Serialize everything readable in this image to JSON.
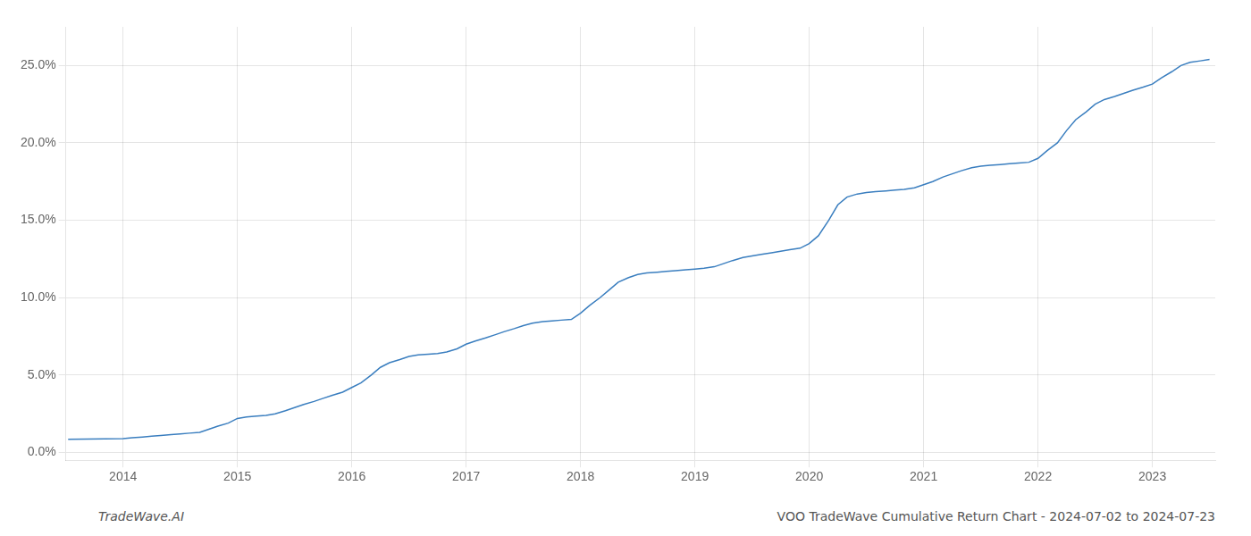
{
  "chart_data": {
    "type": "line",
    "annotations": [
      "TradeWave.AI",
      "VOO TradeWave Cumulative Return Chart - 2024-07-02 to 2024-07-23"
    ],
    "x": [
      2013.52,
      2014.0,
      2014.08,
      2014.17,
      2014.25,
      2014.33,
      2014.42,
      2014.5,
      2014.58,
      2014.67,
      2014.75,
      2014.83,
      2014.92,
      2015.0,
      2015.08,
      2015.17,
      2015.25,
      2015.33,
      2015.42,
      2015.5,
      2015.58,
      2015.67,
      2015.75,
      2015.83,
      2015.92,
      2016.0,
      2016.08,
      2016.17,
      2016.25,
      2016.33,
      2016.42,
      2016.5,
      2016.58,
      2016.67,
      2016.75,
      2016.83,
      2016.92,
      2017.0,
      2017.08,
      2017.17,
      2017.25,
      2017.33,
      2017.42,
      2017.5,
      2017.58,
      2017.67,
      2017.75,
      2017.83,
      2017.92,
      2018.0,
      2018.08,
      2018.17,
      2018.25,
      2018.33,
      2018.42,
      2018.5,
      2018.58,
      2018.67,
      2018.75,
      2018.83,
      2018.92,
      2019.0,
      2019.08,
      2019.17,
      2019.25,
      2019.33,
      2019.42,
      2019.5,
      2019.58,
      2019.67,
      2019.75,
      2019.83,
      2019.92,
      2020.0,
      2020.08,
      2020.17,
      2020.25,
      2020.33,
      2020.42,
      2020.5,
      2020.58,
      2020.67,
      2020.75,
      2020.83,
      2020.92,
      2021.0,
      2021.08,
      2021.17,
      2021.25,
      2021.33,
      2021.42,
      2021.5,
      2021.58,
      2021.67,
      2021.75,
      2021.83,
      2021.92,
      2022.0,
      2022.08,
      2022.17,
      2022.25,
      2022.33,
      2022.42,
      2022.5,
      2022.58,
      2022.67,
      2022.75,
      2022.83,
      2022.92,
      2023.0,
      2023.08,
      2023.17,
      2023.25,
      2023.33,
      2023.42,
      2023.5
    ],
    "values": [
      0.85,
      0.9,
      0.95,
      1.0,
      1.05,
      1.1,
      1.15,
      1.2,
      1.25,
      1.3,
      1.5,
      1.7,
      1.9,
      2.2,
      2.3,
      2.35,
      2.4,
      2.5,
      2.7,
      2.9,
      3.1,
      3.3,
      3.5,
      3.7,
      3.9,
      4.2,
      4.5,
      5.0,
      5.5,
      5.8,
      6.0,
      6.2,
      6.3,
      6.35,
      6.4,
      6.5,
      6.7,
      7.0,
      7.2,
      7.4,
      7.6,
      7.8,
      8.0,
      8.2,
      8.35,
      8.45,
      8.5,
      8.55,
      8.6,
      9.0,
      9.5,
      10.0,
      10.5,
      11.0,
      11.3,
      11.5,
      11.6,
      11.65,
      11.7,
      11.75,
      11.8,
      11.85,
      11.9,
      12.0,
      12.2,
      12.4,
      12.6,
      12.7,
      12.8,
      12.9,
      13.0,
      13.1,
      13.2,
      13.5,
      14.0,
      15.0,
      16.0,
      16.5,
      16.7,
      16.8,
      16.85,
      16.9,
      16.95,
      17.0,
      17.1,
      17.3,
      17.5,
      17.8,
      18.0,
      18.2,
      18.4,
      18.5,
      18.55,
      18.6,
      18.65,
      18.7,
      18.75,
      19.0,
      19.5,
      20.0,
      20.8,
      21.5,
      22.0,
      22.5,
      22.8,
      23.0,
      23.2,
      23.4,
      23.6,
      23.8,
      24.2,
      24.6,
      25.0,
      25.2,
      25.3,
      25.4
    ],
    "color": "#3a7ebf",
    "xlim": [
      2013.5,
      2023.55
    ],
    "ylim": [
      -0.5,
      27.5
    ],
    "xticks": [
      2014,
      2015,
      2016,
      2017,
      2018,
      2019,
      2020,
      2021,
      2022,
      2023
    ],
    "yticks": [
      {
        "value": 0.0,
        "label": "0.0%"
      },
      {
        "value": 5.0,
        "label": "5.0%"
      },
      {
        "value": 10.0,
        "label": "10.0%"
      },
      {
        "value": 15.0,
        "label": "15.0%"
      },
      {
        "value": 20.0,
        "label": "20.0%"
      },
      {
        "value": 25.0,
        "label": "25.0%"
      }
    ],
    "grid": true
  }
}
